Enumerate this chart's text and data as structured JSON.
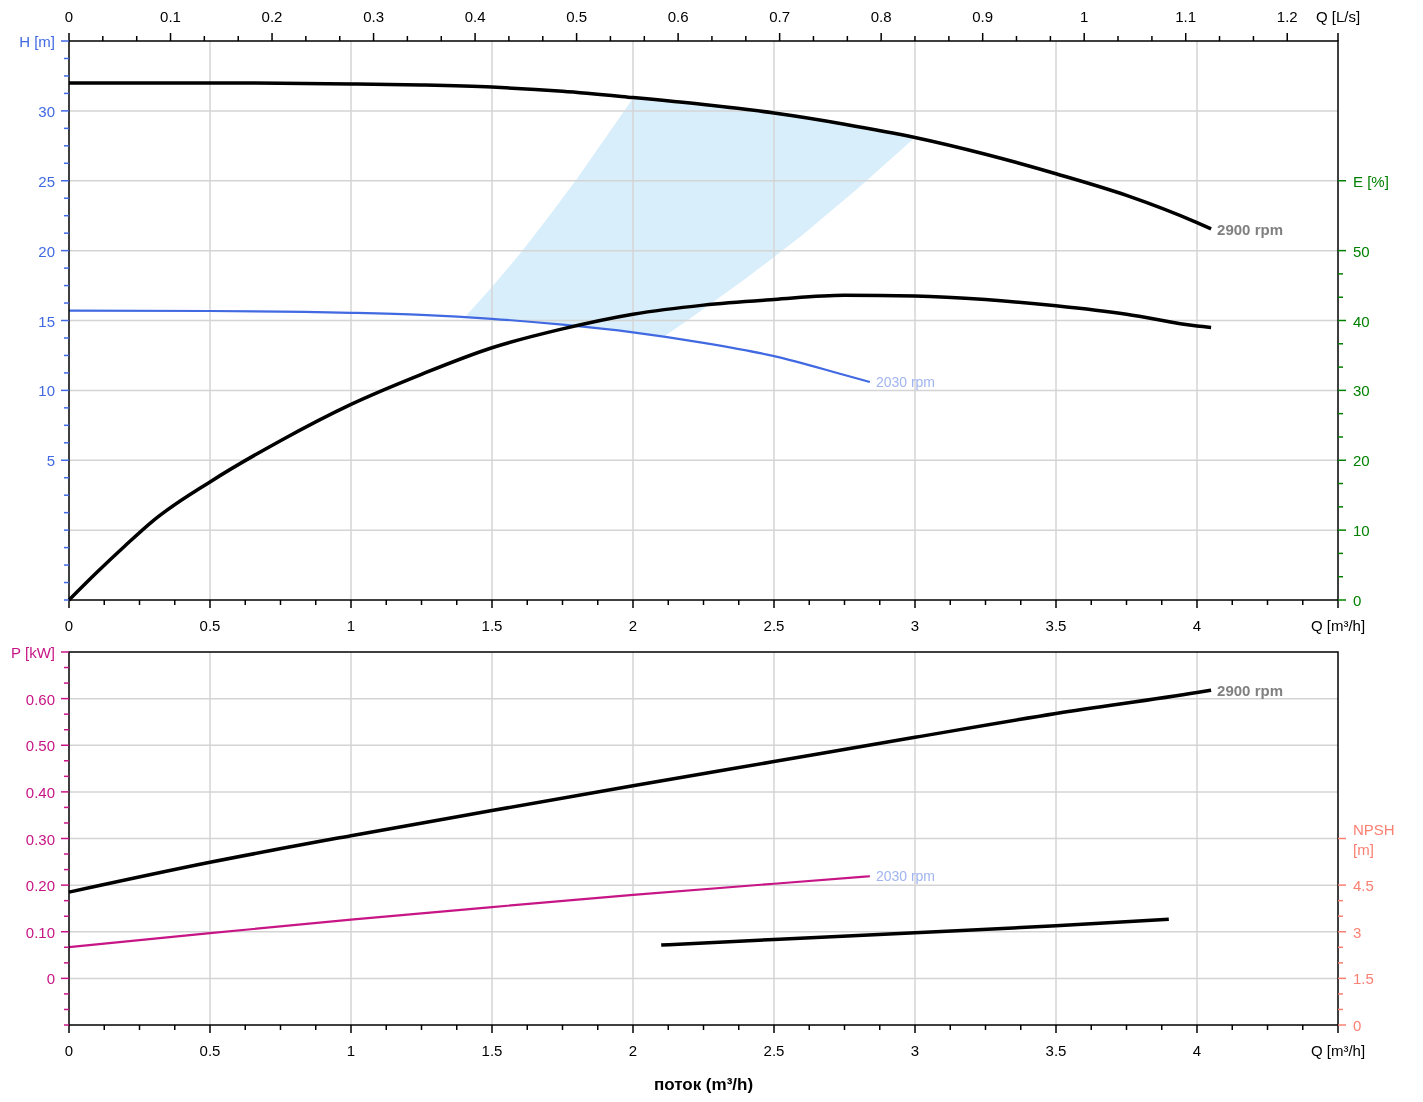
{
  "chart_data": [
    {
      "type": "line",
      "xlabel": "Q [m³/h]",
      "x2label": "Q [L/s]",
      "ylabel": "H [m]",
      "y2label": "E [%]",
      "xlim": [
        0,
        4.5
      ],
      "xticks": [
        0,
        {
          "value": 0.125,
          "label": null
        },
        {
          "value": 0.25,
          "label": null
        },
        {
          "value": 0.375,
          "label": null
        },
        0.5,
        {
          "value": 0.625,
          "label": null
        },
        {
          "value": 0.75,
          "label": null
        },
        {
          "value": 0.875,
          "label": null
        },
        1,
        {
          "value": 1.125,
          "label": null
        },
        {
          "value": 1.25,
          "label": null
        },
        {
          "value": 1.375,
          "label": null
        },
        1.5,
        {
          "value": 1.625,
          "label": null
        },
        {
          "value": 1.75,
          "label": null
        },
        {
          "value": 1.875,
          "label": null
        },
        2,
        {
          "value": 2.125,
          "label": null
        },
        {
          "value": 2.25,
          "label": null
        },
        {
          "value": 2.375,
          "label": null
        },
        2.5,
        {
          "value": 2.625,
          "label": null
        },
        {
          "value": 2.75,
          "label": null
        },
        {
          "value": 2.875,
          "label": null
        },
        3,
        {
          "value": 3.125,
          "label": null
        },
        {
          "value": 3.25,
          "label": null
        },
        {
          "value": 3.375,
          "label": null
        },
        3.5,
        {
          "value": 3.625,
          "label": null
        },
        {
          "value": 3.75,
          "label": null
        },
        {
          "value": 3.875,
          "label": null
        },
        4,
        {
          "value": 4.125,
          "label": null
        },
        {
          "value": 4.25,
          "label": null
        },
        {
          "value": 4.375,
          "label": null
        },
        {
          "value": 4.5,
          "label": null
        }
      ],
      "x2lim": [
        0,
        1.25
      ],
      "x2ticks": [
        0,
        {
          "value": 0.0333,
          "label": null
        },
        {
          "value": 0.0667,
          "label": null
        },
        0.1,
        {
          "value": 0.1333,
          "label": null
        },
        {
          "value": 0.1667,
          "label": null
        },
        0.2,
        {
          "value": 0.2333,
          "label": null
        },
        {
          "value": 0.2667,
          "label": null
        },
        0.3,
        {
          "value": 0.3333,
          "label": null
        },
        {
          "value": 0.3667,
          "label": null
        },
        0.4,
        {
          "value": 0.4333,
          "label": null
        },
        {
          "value": 0.4667,
          "label": null
        },
        0.5,
        {
          "value": 0.5333,
          "label": null
        },
        {
          "value": 0.5667,
          "label": null
        },
        0.6,
        {
          "value": 0.6333,
          "label": null
        },
        {
          "value": 0.6667,
          "label": null
        },
        0.7,
        {
          "value": 0.7333,
          "label": null
        },
        {
          "value": 0.7667,
          "label": null
        },
        0.8,
        {
          "value": 0.8333,
          "label": null
        },
        {
          "value": 0.8667,
          "label": null
        },
        0.9,
        {
          "value": 0.9333,
          "label": null
        },
        {
          "value": 0.9667,
          "label": null
        },
        1,
        {
          "value": 1.0333,
          "label": null
        },
        {
          "value": 1.0667,
          "label": null
        },
        1.1,
        {
          "value": 1.1333,
          "label": null
        },
        {
          "value": 1.1667,
          "label": null
        },
        1.2,
        {
          "value": 1.25,
          "label": null
        }
      ],
      "ylim": [
        -5,
        35
      ],
      "yticks": [
        {
          "value": -5,
          "label": null
        },
        {
          "value": -3.75,
          "label": null
        },
        {
          "value": -2.5,
          "label": null
        },
        {
          "value": -1.25,
          "label": null
        },
        {
          "value": 0,
          "label": null
        },
        {
          "value": 1.25,
          "label": null
        },
        {
          "value": 2.5,
          "label": null
        },
        {
          "value": 3.75,
          "label": null
        },
        5,
        {
          "value": 6.25,
          "label": null
        },
        {
          "value": 7.5,
          "label": null
        },
        {
          "value": 8.75,
          "label": null
        },
        10,
        {
          "value": 11.25,
          "label": null
        },
        {
          "value": 12.5,
          "label": null
        },
        {
          "value": 13.75,
          "label": null
        },
        15,
        {
          "value": 16.25,
          "label": null
        },
        {
          "value": 17.5,
          "label": null
        },
        {
          "value": 18.75,
          "label": null
        },
        20,
        {
          "value": 21.25,
          "label": null
        },
        {
          "value": 22.5,
          "label": null
        },
        {
          "value": 23.75,
          "label": null
        },
        25,
        {
          "value": 26.25,
          "label": null
        },
        {
          "value": 27.5,
          "label": null
        },
        {
          "value": 28.75,
          "label": null
        },
        30,
        {
          "value": 31.25,
          "label": null
        },
        {
          "value": 32.5,
          "label": null
        },
        {
          "value": 33.75,
          "label": null
        },
        {
          "value": 35,
          "label": null
        }
      ],
      "y2lim": [
        0,
        80
      ],
      "y2ticks": [
        0,
        {
          "value": 3.33,
          "label": null
        },
        {
          "value": 6.67,
          "label": null
        },
        10,
        {
          "value": 13.33,
          "label": null
        },
        {
          "value": 16.67,
          "label": null
        },
        20,
        {
          "value": 23.33,
          "label": null
        },
        {
          "value": 26.67,
          "label": null
        },
        30,
        {
          "value": 33.33,
          "label": null
        },
        {
          "value": 36.67,
          "label": null
        },
        40,
        {
          "value": 43.33,
          "label": null
        },
        {
          "value": 46.67,
          "label": null
        },
        50,
        {
          "value": 60,
          "label": null
        }
      ],
      "grid": true,
      "series": [
        {
          "color": "#d8eefa",
          "x": [
            1.404,
            1.5,
            1.6,
            1.7,
            1.8,
            1.9,
            2.0,
            2.11,
            2.2,
            2.4,
            2.6,
            2.8,
            3.0
          ],
          "values": [
            null,
            null,
            null,
            null,
            null,
            null,
            null,
            null,
            null,
            null,
            null,
            null,
            null
          ],
          "lower": [
            15.25,
            15.1,
            14.95,
            14.8,
            14.6,
            14.4,
            14.15,
            13.85,
            15.1,
            18.0,
            21.1,
            24.5,
            28.1
          ],
          "upper": [
            15.25,
            17.4,
            19.8,
            22.4,
            25.1,
            28.0,
            30.9,
            30.7,
            30.5,
            30.1,
            29.6,
            28.9,
            28.1
          ]
        },
        {
          "name": "2900 rpm",
          "color": "#000000",
          "x": [
            0,
            0.25,
            0.5,
            0.75,
            1,
            1.25,
            1.5,
            1.75,
            2,
            2.25,
            2.5,
            2.75,
            3,
            3.25,
            3.5,
            3.75,
            4,
            4.05
          ],
          "values": [
            32.0,
            32.0,
            32.0,
            31.98,
            31.93,
            31.85,
            31.7,
            31.4,
            30.95,
            30.45,
            29.85,
            29.05,
            28.1,
            26.9,
            25.5,
            23.95,
            22.0,
            21.55
          ]
        },
        {
          "name": "2030 rpm",
          "color": "#4169e1",
          "x": [
            0,
            0.5,
            1,
            1.25,
            1.5,
            1.75,
            2,
            2.25,
            2.5,
            2.75,
            2.84
          ],
          "values": [
            15.7,
            15.68,
            15.55,
            15.4,
            15.12,
            14.7,
            14.15,
            13.4,
            12.45,
            11.1,
            10.6
          ]
        },
        {
          "color": "#000000",
          "axis": "y2",
          "x": [
            0,
            0.1,
            0.2,
            0.3,
            0.5,
            0.75,
            1,
            1.25,
            1.5,
            1.75,
            2,
            2.25,
            2.5,
            2.75,
            3,
            3.25,
            3.5,
            3.75,
            4,
            4.05
          ],
          "values": [
            0,
            4.0,
            7.8,
            11.4,
            16.9,
            22.8,
            28.0,
            32.3,
            36.1,
            38.8,
            40.9,
            42.2,
            43.0,
            43.6,
            43.5,
            43.0,
            42.1,
            40.9,
            39.2,
            39.0
          ]
        }
      ]
    },
    {
      "type": "line",
      "xlabel": "Q [m³/h]",
      "ylabel": "P [kW]",
      "y2label": "NPSH [m]",
      "xlim": [
        0,
        4.5
      ],
      "xticks": [
        0,
        {
          "value": 0.125,
          "label": null
        },
        {
          "value": 0.25,
          "label": null
        },
        {
          "value": 0.375,
          "label": null
        },
        0.5,
        {
          "value": 0.625,
          "label": null
        },
        {
          "value": 0.75,
          "label": null
        },
        {
          "value": 0.875,
          "label": null
        },
        1,
        {
          "value": 1.125,
          "label": null
        },
        {
          "value": 1.25,
          "label": null
        },
        {
          "value": 1.375,
          "label": null
        },
        1.5,
        {
          "value": 1.625,
          "label": null
        },
        {
          "value": 1.75,
          "label": null
        },
        {
          "value": 1.875,
          "label": null
        },
        2,
        {
          "value": 2.125,
          "label": null
        },
        {
          "value": 2.25,
          "label": null
        },
        {
          "value": 2.375,
          "label": null
        },
        2.5,
        {
          "value": 2.625,
          "label": null
        },
        {
          "value": 2.75,
          "label": null
        },
        {
          "value": 2.875,
          "label": null
        },
        3,
        {
          "value": 3.125,
          "label": null
        },
        {
          "value": 3.25,
          "label": null
        },
        {
          "value": 3.375,
          "label": null
        },
        3.5,
        {
          "value": 3.625,
          "label": null
        },
        {
          "value": 3.75,
          "label": null
        },
        {
          "value": 3.875,
          "label": null
        },
        4,
        {
          "value": 4.125,
          "label": null
        },
        {
          "value": 4.25,
          "label": null
        },
        {
          "value": 4.375,
          "label": null
        },
        {
          "value": 4.5,
          "label": null
        }
      ],
      "ylim": [
        -0.1,
        0.7
      ],
      "yticks": [
        {
          "value": -0.1,
          "label": null
        },
        {
          "value": -0.0667,
          "label": null
        },
        {
          "value": -0.0333,
          "label": null
        },
        0,
        {
          "value": 0.0333,
          "label": null
        },
        {
          "value": 0.0667,
          "label": null
        },
        {
          "value": 0.1,
          "label": "0.10"
        },
        {
          "value": 0.1333,
          "label": null
        },
        {
          "value": 0.1667,
          "label": null
        },
        {
          "value": 0.2,
          "label": "0.20"
        },
        {
          "value": 0.2333,
          "label": null
        },
        {
          "value": 0.2667,
          "label": null
        },
        {
          "value": 0.3,
          "label": "0.30"
        },
        {
          "value": 0.3333,
          "label": null
        },
        {
          "value": 0.3667,
          "label": null
        },
        {
          "value": 0.4,
          "label": "0.40"
        },
        {
          "value": 0.4333,
          "label": null
        },
        {
          "value": 0.4667,
          "label": null
        },
        {
          "value": 0.5,
          "label": "0.50"
        },
        {
          "value": 0.5333,
          "label": null
        },
        {
          "value": 0.5667,
          "label": null
        },
        {
          "value": 0.6,
          "label": "0.60"
        },
        {
          "value": 0.6333,
          "label": null
        },
        {
          "value": 0.6667,
          "label": null
        },
        {
          "value": 0.7,
          "label": null
        }
      ],
      "y2lim": [
        0,
        12
      ],
      "y2ticks": [
        0,
        {
          "value": 0.5,
          "label": null
        },
        {
          "value": 1,
          "label": null
        },
        1.5,
        {
          "value": 2,
          "label": null
        },
        {
          "value": 2.5,
          "label": null
        },
        3,
        {
          "value": 3.5,
          "label": null
        },
        {
          "value": 4,
          "label": null
        },
        4.5,
        {
          "value": 6,
          "label": null
        }
      ],
      "grid": true,
      "annotations": [
        "поток (m³/h)"
      ],
      "series": [
        {
          "name": "2900 rpm",
          "color": "#000000",
          "x": [
            0,
            0.5,
            1,
            1.5,
            2,
            2.5,
            3,
            3.5,
            4,
            4.05
          ],
          "values": [
            0.185,
            0.249,
            0.306,
            0.36,
            0.413,
            0.465,
            0.517,
            0.568,
            0.613,
            0.618
          ]
        },
        {
          "name": "2030 rpm",
          "color": "#c71585",
          "x": [
            0,
            0.5,
            1,
            1.5,
            2,
            2.5,
            2.84
          ],
          "values": [
            0.067,
            0.097,
            0.126,
            0.153,
            0.179,
            0.203,
            0.219
          ]
        },
        {
          "color": "#000000",
          "axis": "y2",
          "x": [
            2.1,
            2.5,
            3,
            3.5,
            3.9
          ],
          "values": [
            2.57,
            2.75,
            2.97,
            3.19,
            3.4
          ]
        }
      ]
    }
  ]
}
